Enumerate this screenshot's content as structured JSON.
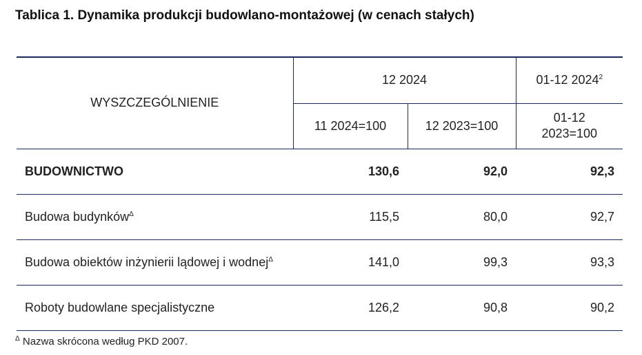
{
  "title": "Tablica 1. Dynamika produkcji budowlano-montażowej (w cenach stałych)",
  "table": {
    "header": {
      "label": "WYSZCZEGÓLNIENIE",
      "group1": "12 2024",
      "group2": {
        "text": "01-12 2024",
        "note": "2"
      },
      "sub": [
        "11 2024=100",
        "12 2023=100",
        "01-12 2023=100"
      ]
    },
    "rows": [
      {
        "label": "BUDOWNICTWO",
        "values": [
          "130,6",
          "92,0",
          "92,3"
        ]
      },
      {
        "label": "Budowa budynków",
        "mark": "Δ",
        "values": [
          "115,5",
          "80,0",
          "92,7"
        ]
      },
      {
        "label": "Budowa obiektów inżynierii lądowej i wodnej",
        "mark": "Δ",
        "values": [
          "141,0",
          "99,3",
          "93,3"
        ]
      },
      {
        "label": "Roboty budowlane specjalistyczne",
        "values": [
          "126,2",
          "90,8",
          "90,2"
        ]
      }
    ]
  },
  "footnote": {
    "mark": "Δ",
    "text": "Nazwa skrócona według PKD 2007."
  }
}
